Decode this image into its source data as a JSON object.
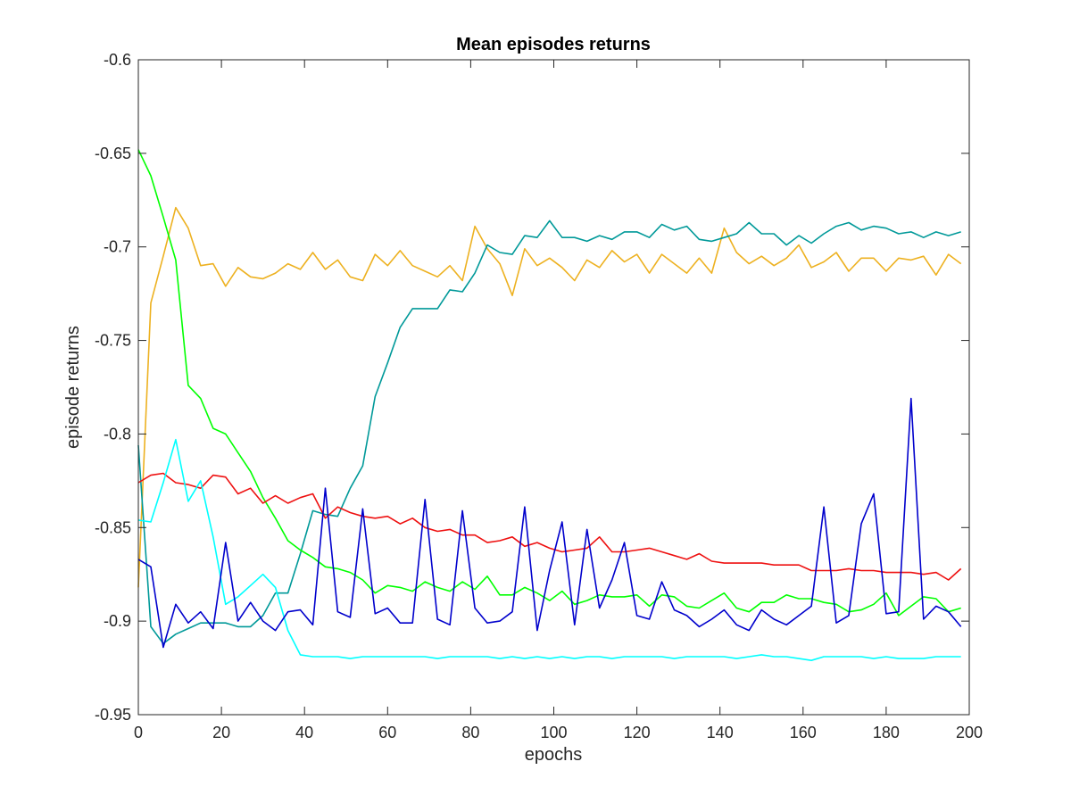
{
  "chart_data": {
    "type": "line",
    "title": "Mean episodes returns",
    "xlabel": "epochs",
    "ylabel": "episode returns",
    "xlim": [
      0,
      200
    ],
    "ylim": [
      -0.95,
      -0.6
    ],
    "xticks": [
      0,
      20,
      40,
      60,
      80,
      100,
      120,
      140,
      160,
      180,
      200
    ],
    "yticks": [
      -0.95,
      -0.9,
      -0.85,
      -0.8,
      -0.75,
      -0.7,
      -0.65,
      -0.6
    ],
    "grid": false,
    "legend": "none",
    "series": [
      {
        "color": "#edb120",
        "x": [
          0,
          3,
          6,
          9,
          12,
          15,
          18,
          21,
          24,
          27,
          30,
          33,
          36,
          39,
          42,
          45,
          48,
          51,
          54,
          57,
          60,
          63,
          66,
          69,
          72,
          75,
          78,
          81,
          84,
          87,
          90,
          93,
          96,
          99,
          102,
          105,
          108,
          111,
          114,
          117,
          120,
          123,
          126,
          129,
          132,
          135,
          138,
          141,
          144,
          147,
          150,
          153,
          156,
          159,
          162,
          165,
          168,
          171,
          174,
          177,
          180,
          183,
          186,
          189,
          192,
          195,
          198
        ],
        "y": [
          -0.882,
          -0.73,
          -0.705,
          -0.679,
          -0.69,
          -0.71,
          -0.709,
          -0.721,
          -0.711,
          -0.716,
          -0.717,
          -0.714,
          -0.709,
          -0.712,
          -0.703,
          -0.712,
          -0.707,
          -0.716,
          -0.718,
          -0.704,
          -0.71,
          -0.702,
          -0.71,
          -0.713,
          -0.716,
          -0.71,
          -0.718,
          -0.689,
          -0.701,
          -0.709,
          -0.726,
          -0.701,
          -0.71,
          -0.706,
          -0.711,
          -0.718,
          -0.707,
          -0.711,
          -0.702,
          -0.708,
          -0.704,
          -0.714,
          -0.704,
          -0.709,
          -0.714,
          -0.706,
          -0.714,
          -0.69,
          -0.703,
          -0.709,
          -0.705,
          -0.71,
          -0.706,
          -0.699,
          -0.711,
          -0.708,
          -0.703,
          -0.713,
          -0.706,
          -0.706,
          -0.713,
          -0.706,
          -0.707,
          -0.705,
          -0.715,
          -0.704,
          -0.709
        ]
      },
      {
        "color": "#009999",
        "x": [
          0,
          3,
          6,
          9,
          12,
          15,
          18,
          21,
          24,
          27,
          30,
          33,
          36,
          39,
          42,
          45,
          48,
          51,
          54,
          57,
          60,
          63,
          66,
          69,
          72,
          75,
          78,
          81,
          84,
          87,
          90,
          93,
          96,
          99,
          102,
          105,
          108,
          111,
          114,
          117,
          120,
          123,
          126,
          129,
          132,
          135,
          138,
          141,
          144,
          147,
          150,
          153,
          156,
          159,
          162,
          165,
          168,
          171,
          174,
          177,
          180,
          183,
          186,
          189,
          192,
          195,
          198
        ],
        "y": [
          -0.806,
          -0.903,
          -0.912,
          -0.907,
          -0.904,
          -0.901,
          -0.901,
          -0.901,
          -0.903,
          -0.903,
          -0.897,
          -0.885,
          -0.885,
          -0.864,
          -0.841,
          -0.843,
          -0.844,
          -0.829,
          -0.817,
          -0.78,
          -0.762,
          -0.743,
          -0.733,
          -0.733,
          -0.733,
          -0.723,
          -0.724,
          -0.714,
          -0.699,
          -0.703,
          -0.704,
          -0.694,
          -0.695,
          -0.686,
          -0.695,
          -0.695,
          -0.697,
          -0.694,
          -0.696,
          -0.692,
          -0.692,
          -0.695,
          -0.688,
          -0.691,
          -0.689,
          -0.696,
          -0.697,
          -0.695,
          -0.693,
          -0.687,
          -0.693,
          -0.693,
          -0.699,
          -0.694,
          -0.698,
          -0.693,
          -0.689,
          -0.687,
          -0.691,
          -0.689,
          -0.69,
          -0.693,
          -0.692,
          -0.695,
          -0.692,
          -0.694,
          -0.692
        ]
      },
      {
        "color": "#00ff00",
        "x": [
          0,
          3,
          6,
          9,
          12,
          15,
          18,
          21,
          24,
          27,
          30,
          33,
          36,
          39,
          42,
          45,
          48,
          51,
          54,
          57,
          60,
          63,
          66,
          69,
          72,
          75,
          78,
          81,
          84,
          87,
          90,
          93,
          96,
          99,
          102,
          105,
          108,
          111,
          114,
          117,
          120,
          123,
          126,
          129,
          132,
          135,
          138,
          141,
          144,
          147,
          150,
          153,
          156,
          159,
          162,
          165,
          168,
          171,
          174,
          177,
          180,
          183,
          186,
          189,
          192,
          195,
          198
        ],
        "y": [
          -0.648,
          -0.662,
          -0.684,
          -0.707,
          -0.774,
          -0.781,
          -0.797,
          -0.8,
          -0.81,
          -0.82,
          -0.834,
          -0.845,
          -0.857,
          -0.862,
          -0.866,
          -0.871,
          -0.872,
          -0.874,
          -0.878,
          -0.885,
          -0.881,
          -0.882,
          -0.884,
          -0.879,
          -0.882,
          -0.884,
          -0.879,
          -0.883,
          -0.876,
          -0.886,
          -0.886,
          -0.882,
          -0.885,
          -0.889,
          -0.884,
          -0.891,
          -0.889,
          -0.886,
          -0.887,
          -0.887,
          -0.886,
          -0.892,
          -0.886,
          -0.887,
          -0.892,
          -0.893,
          -0.889,
          -0.885,
          -0.893,
          -0.895,
          -0.89,
          -0.89,
          -0.886,
          -0.888,
          -0.888,
          -0.89,
          -0.891,
          -0.895,
          -0.894,
          -0.891,
          -0.885,
          -0.897,
          -0.892,
          -0.887,
          -0.888,
          -0.895,
          -0.893
        ]
      },
      {
        "color": "#ee1111",
        "x": [
          0,
          3,
          6,
          9,
          12,
          15,
          18,
          21,
          24,
          27,
          30,
          33,
          36,
          39,
          42,
          45,
          48,
          51,
          54,
          57,
          60,
          63,
          66,
          69,
          72,
          75,
          78,
          81,
          84,
          87,
          90,
          93,
          96,
          99,
          102,
          105,
          108,
          111,
          114,
          117,
          120,
          123,
          126,
          129,
          132,
          135,
          138,
          141,
          144,
          147,
          150,
          153,
          156,
          159,
          162,
          165,
          168,
          171,
          174,
          177,
          180,
          183,
          186,
          189,
          192,
          195,
          198
        ],
        "y": [
          -0.826,
          -0.822,
          -0.821,
          -0.826,
          -0.827,
          -0.829,
          -0.822,
          -0.823,
          -0.832,
          -0.829,
          -0.837,
          -0.833,
          -0.837,
          -0.834,
          -0.832,
          -0.845,
          -0.839,
          -0.842,
          -0.844,
          -0.845,
          -0.844,
          -0.848,
          -0.845,
          -0.85,
          -0.852,
          -0.851,
          -0.854,
          -0.854,
          -0.858,
          -0.857,
          -0.855,
          -0.86,
          -0.858,
          -0.861,
          -0.863,
          -0.862,
          -0.861,
          -0.855,
          -0.863,
          -0.863,
          -0.862,
          -0.861,
          -0.863,
          -0.865,
          -0.867,
          -0.864,
          -0.868,
          -0.869,
          -0.869,
          -0.869,
          -0.869,
          -0.87,
          -0.87,
          -0.87,
          -0.873,
          -0.873,
          -0.873,
          -0.872,
          -0.873,
          -0.873,
          -0.874,
          -0.874,
          -0.874,
          -0.875,
          -0.874,
          -0.878,
          -0.872
        ]
      },
      {
        "color": "#00ffff",
        "x": [
          0,
          3,
          6,
          9,
          12,
          15,
          18,
          21,
          24,
          27,
          30,
          33,
          36,
          39,
          42,
          45,
          48,
          51,
          54,
          57,
          60,
          63,
          66,
          69,
          72,
          75,
          78,
          81,
          84,
          87,
          90,
          93,
          96,
          99,
          102,
          105,
          108,
          111,
          114,
          117,
          120,
          123,
          126,
          129,
          132,
          135,
          138,
          141,
          144,
          147,
          150,
          153,
          156,
          159,
          162,
          165,
          168,
          171,
          174,
          177,
          180,
          183,
          186,
          189,
          192,
          195,
          198
        ],
        "y": [
          -0.846,
          -0.847,
          -0.826,
          -0.803,
          -0.836,
          -0.825,
          -0.855,
          -0.891,
          -0.887,
          -0.881,
          -0.875,
          -0.882,
          -0.905,
          -0.918,
          -0.919,
          -0.919,
          -0.919,
          -0.92,
          -0.919,
          -0.919,
          -0.919,
          -0.919,
          -0.919,
          -0.919,
          -0.92,
          -0.919,
          -0.919,
          -0.919,
          -0.919,
          -0.92,
          -0.919,
          -0.92,
          -0.919,
          -0.92,
          -0.919,
          -0.92,
          -0.919,
          -0.919,
          -0.92,
          -0.919,
          -0.919,
          -0.919,
          -0.919,
          -0.92,
          -0.919,
          -0.919,
          -0.919,
          -0.919,
          -0.92,
          -0.919,
          -0.918,
          -0.919,
          -0.919,
          -0.92,
          -0.921,
          -0.919,
          -0.919,
          -0.919,
          -0.919,
          -0.92,
          -0.919,
          -0.92,
          -0.92,
          -0.92,
          -0.919,
          -0.919,
          -0.919
        ]
      },
      {
        "color": "#0000cc",
        "x": [
          0,
          3,
          6,
          9,
          12,
          15,
          18,
          21,
          24,
          27,
          30,
          33,
          36,
          39,
          42,
          45,
          48,
          51,
          54,
          57,
          60,
          63,
          66,
          69,
          72,
          75,
          78,
          81,
          84,
          87,
          90,
          93,
          96,
          99,
          102,
          105,
          108,
          111,
          114,
          117,
          120,
          123,
          126,
          129,
          132,
          135,
          138,
          141,
          144,
          147,
          150,
          153,
          156,
          159,
          162,
          165,
          168,
          171,
          174,
          177,
          180,
          183,
          186,
          189,
          192,
          195,
          198
        ],
        "y": [
          -0.867,
          -0.871,
          -0.914,
          -0.891,
          -0.901,
          -0.895,
          -0.904,
          -0.858,
          -0.9,
          -0.89,
          -0.9,
          -0.905,
          -0.895,
          -0.894,
          -0.902,
          -0.829,
          -0.895,
          -0.898,
          -0.84,
          -0.896,
          -0.893,
          -0.901,
          -0.901,
          -0.835,
          -0.899,
          -0.902,
          -0.841,
          -0.893,
          -0.901,
          -0.9,
          -0.895,
          -0.839,
          -0.905,
          -0.873,
          -0.847,
          -0.902,
          -0.851,
          -0.893,
          -0.878,
          -0.858,
          -0.897,
          -0.899,
          -0.879,
          -0.894,
          -0.897,
          -0.903,
          -0.899,
          -0.894,
          -0.902,
          -0.905,
          -0.894,
          -0.899,
          -0.902,
          -0.897,
          -0.892,
          -0.839,
          -0.901,
          -0.897,
          -0.848,
          -0.832,
          -0.896,
          -0.895,
          -0.781,
          -0.899,
          -0.892,
          -0.895,
          -0.903
        ]
      }
    ]
  }
}
